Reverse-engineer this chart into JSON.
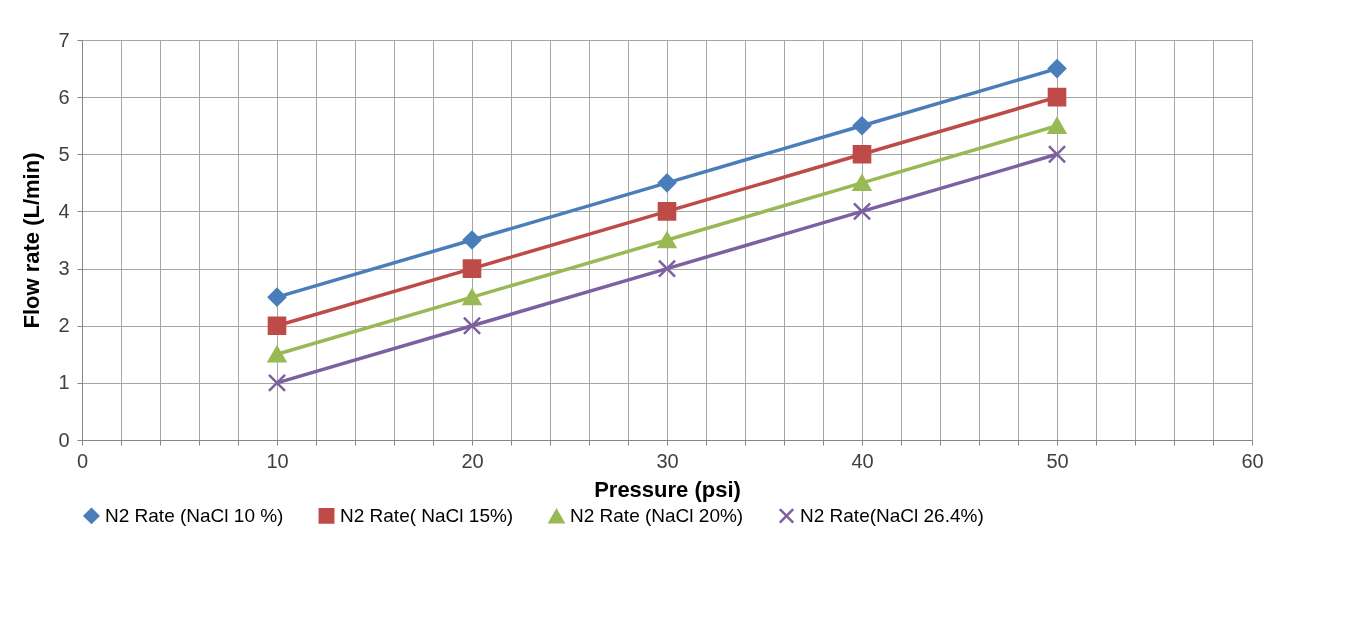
{
  "chart_data": {
    "type": "line",
    "xlabel": "Pressure (psi)",
    "ylabel": "Flow rate (L/min)",
    "xlim": [
      0,
      60
    ],
    "ylim": [
      0,
      7
    ],
    "xticks": [
      0,
      {
        "value": 2,
        "label": null
      },
      {
        "value": 4,
        "label": null
      },
      {
        "value": 6,
        "label": null
      },
      {
        "value": 8,
        "label": null
      },
      10,
      {
        "value": 12,
        "label": null
      },
      {
        "value": 14,
        "label": null
      },
      {
        "value": 16,
        "label": null
      },
      {
        "value": 18,
        "label": null
      },
      20,
      {
        "value": 22,
        "label": null
      },
      {
        "value": 24,
        "label": null
      },
      {
        "value": 26,
        "label": null
      },
      {
        "value": 28,
        "label": null
      },
      30,
      {
        "value": 32,
        "label": null
      },
      {
        "value": 34,
        "label": null
      },
      {
        "value": 36,
        "label": null
      },
      {
        "value": 38,
        "label": null
      },
      40,
      {
        "value": 42,
        "label": null
      },
      {
        "value": 44,
        "label": null
      },
      {
        "value": 46,
        "label": null
      },
      {
        "value": 48,
        "label": null
      },
      50,
      {
        "value": 52,
        "label": null
      },
      {
        "value": 54,
        "label": null
      },
      {
        "value": 56,
        "label": null
      },
      {
        "value": 58,
        "label": null
      },
      60
    ],
    "yticks": [
      0,
      1,
      2,
      3,
      4,
      5,
      6,
      7
    ],
    "grid": true,
    "legend": "bottom",
    "line_style": "solid",
    "x": [
      10,
      20,
      30,
      40,
      50
    ],
    "series": [
      {
        "name": "N2 Rate (NaCl 10 %)",
        "color": "#4a7ebb",
        "marker": "diamond",
        "values": [
          2.5,
          3.5,
          4.5,
          5.5,
          6.5
        ]
      },
      {
        "name": "N2 Rate( NaCl 15%)",
        "color": "#be4b48",
        "marker": "square",
        "values": [
          2,
          3,
          4,
          5,
          6
        ]
      },
      {
        "name": "N2 Rate (NaCl 20%)",
        "color": "#98b954",
        "marker": "triangle",
        "values": [
          1.5,
          2.5,
          3.5,
          4.5,
          5.5
        ]
      },
      {
        "name": "N2 Rate(NaCl 26.4%)",
        "color": "#7d60a0",
        "marker": "cross",
        "values": [
          1,
          2,
          3,
          4,
          5
        ]
      }
    ]
  }
}
